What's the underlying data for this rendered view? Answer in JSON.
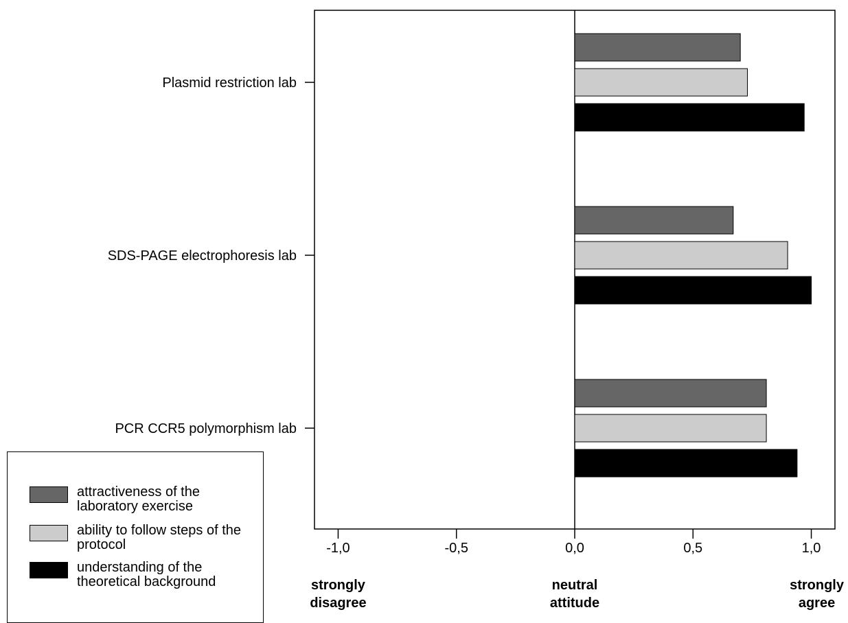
{
  "chart_data": {
    "type": "bar",
    "orientation": "horizontal",
    "categories": [
      "Plasmid restriction lab",
      "SDS-PAGE electrophoresis lab",
      "PCR CCR5 polymorphism lab"
    ],
    "series": [
      {
        "name": "attractiveness of the laboratory exercise",
        "color": "#666666",
        "values": [
          0.7,
          0.67,
          0.81
        ]
      },
      {
        "name": "ability to follow steps of the protocol",
        "color": "#cccccc",
        "values": [
          0.73,
          0.9,
          0.81
        ]
      },
      {
        "name": "understanding of the theoretical background",
        "color": "#000000",
        "values": [
          0.97,
          1.0,
          0.94
        ]
      }
    ],
    "xlim": [
      -1.1,
      1.1
    ],
    "xticks": [
      -1.0,
      -0.5,
      0.0,
      0.5,
      1.0
    ],
    "xtick_labels": [
      "-1,0",
      "-0,5",
      "0,0",
      "0,5",
      "1,0"
    ],
    "anchor_labels": [
      {
        "value": -1.0,
        "line1": "strongly",
        "line2": "disagree"
      },
      {
        "value": 0.0,
        "line1": "neutral",
        "line2": "attitude"
      },
      {
        "value": 1.0,
        "line1": "strongly",
        "line2": "agree"
      }
    ],
    "reference_line": 0.0,
    "legend_position": "bottom-left",
    "grid": false
  }
}
